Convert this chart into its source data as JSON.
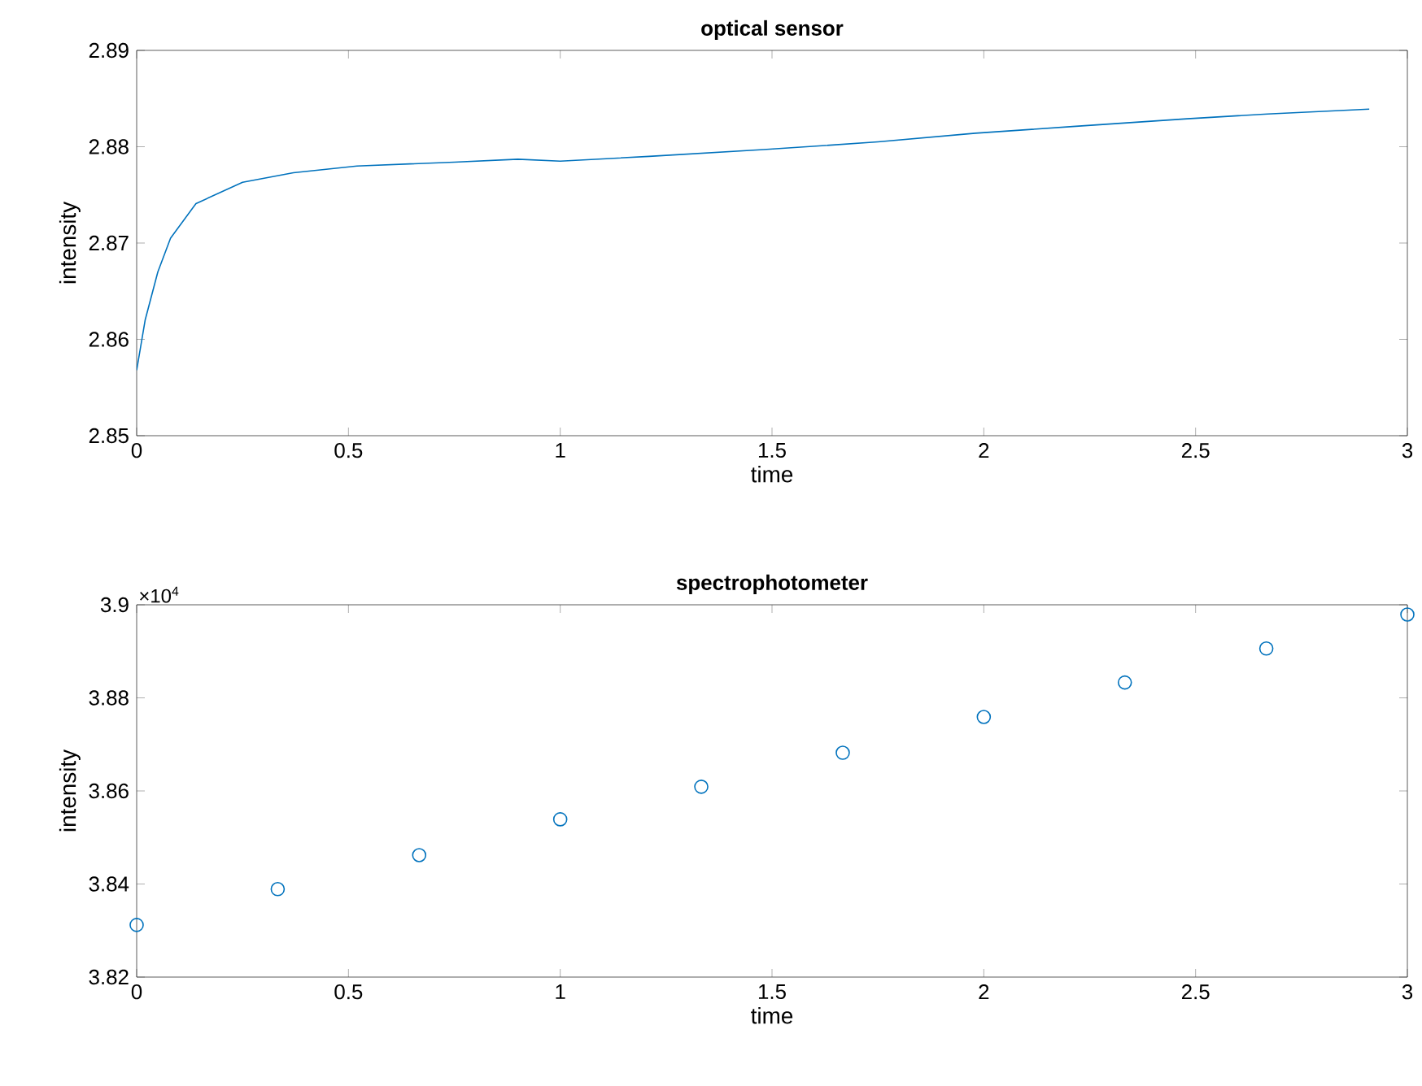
{
  "chart_data": [
    {
      "type": "line",
      "title": "optical sensor",
      "xlabel": "time",
      "ylabel": "intensity",
      "color": "#0072bd",
      "marker": "none",
      "line_style": "solid",
      "x": [
        0,
        0.02,
        0.05,
        0.08,
        0.14,
        0.25,
        0.37,
        0.52,
        0.75,
        0.9,
        1.0,
        1.21,
        1.48,
        1.75,
        1.98,
        2.21,
        2.48,
        2.67,
        2.91
      ],
      "values": [
        2.8568,
        2.862,
        2.867,
        2.8705,
        2.8741,
        2.8763,
        2.8773,
        2.878,
        2.8784,
        2.8787,
        2.8785,
        2.879,
        2.8797,
        2.8805,
        2.8814,
        2.8821,
        2.8829,
        2.8834,
        2.8839
      ],
      "xlim": [
        0,
        3
      ],
      "ylim": [
        2.85,
        2.89
      ],
      "xticks": [
        0,
        0.5,
        1,
        1.5,
        2,
        2.5,
        3
      ],
      "yticks": [
        2.85,
        2.86,
        2.87,
        2.88,
        2.89
      ]
    },
    {
      "type": "scatter",
      "title": "spectrophotometer",
      "xlabel": "time",
      "ylabel": "intensity",
      "color": "#0072bd",
      "marker": "circle",
      "x": [
        0,
        0.333,
        0.667,
        1,
        1.333,
        1.667,
        2,
        2.333,
        2.667,
        3
      ],
      "values": [
        3.8312,
        3.8389,
        3.8462,
        3.8539,
        3.8609,
        3.8682,
        3.8759,
        3.8833,
        3.8906,
        3.8979
      ],
      "xlim": [
        0,
        3
      ],
      "ylim": [
        3.82,
        3.9
      ],
      "xticks": [
        0,
        0.5,
        1,
        1.5,
        2,
        2.5,
        3
      ],
      "yticks": [
        3.82,
        3.84,
        3.86,
        3.88,
        3.9
      ],
      "annotations": [
        "×10$^{4}$"
      ]
    }
  ]
}
